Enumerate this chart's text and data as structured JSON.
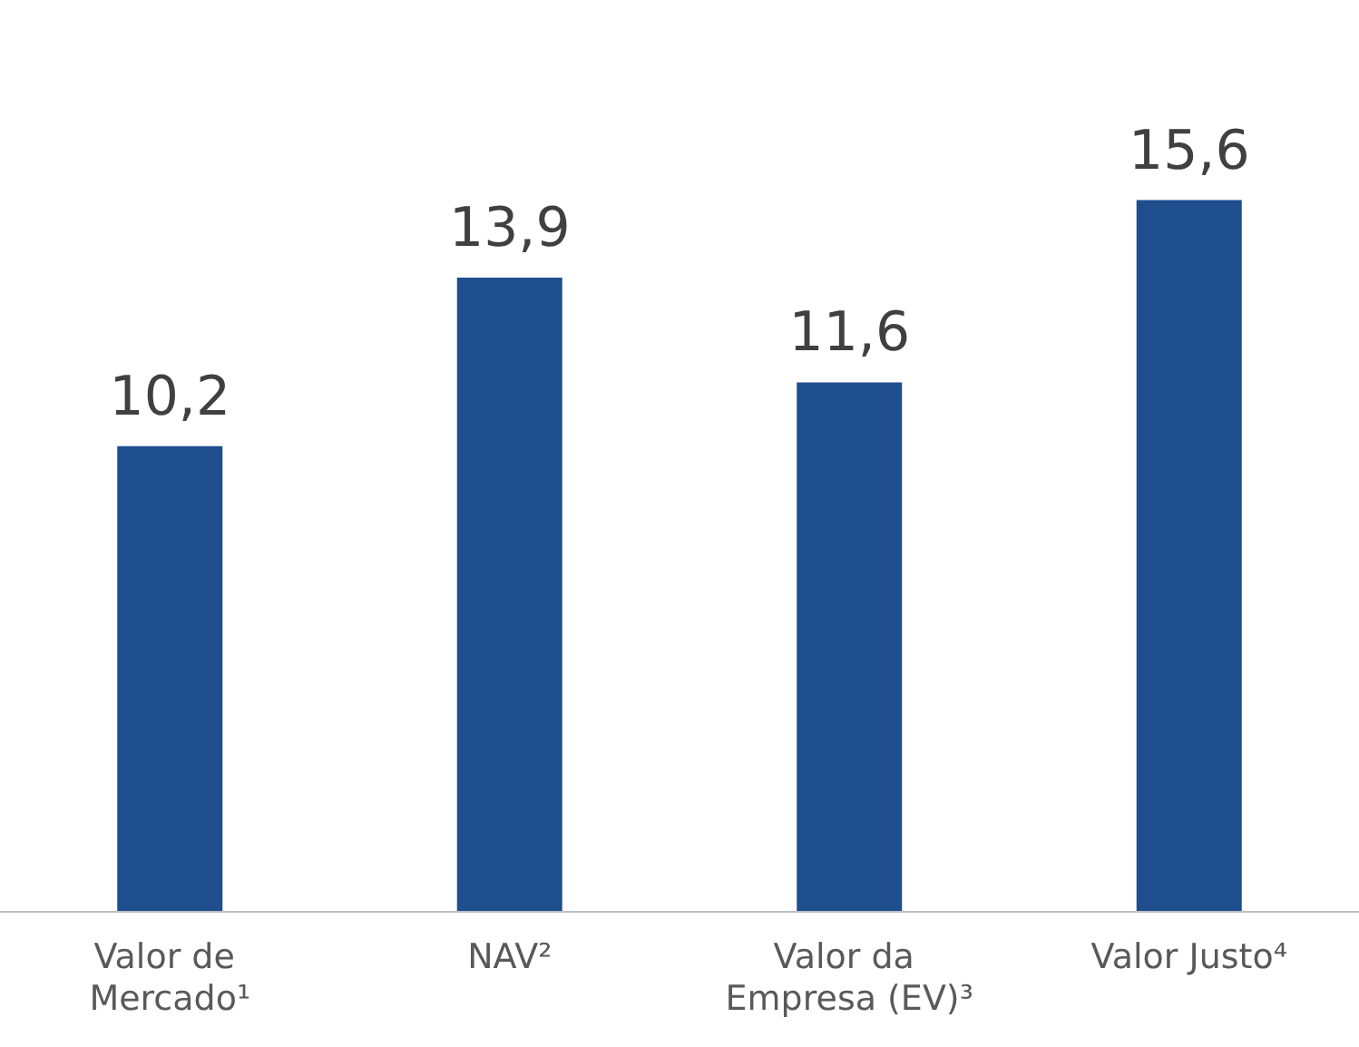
{
  "chart_data": {
    "type": "bar",
    "categories": [
      "Valor de Mercado¹",
      "NAV²",
      "Valor da Empresa (EV)³",
      "Valor Justo⁴"
    ],
    "values": [
      10.2,
      13.9,
      11.6,
      15.6
    ],
    "value_labels": [
      "10,2",
      "13,9",
      "11,6",
      "15,6"
    ],
    "color": "#1f4e8f"
  }
}
